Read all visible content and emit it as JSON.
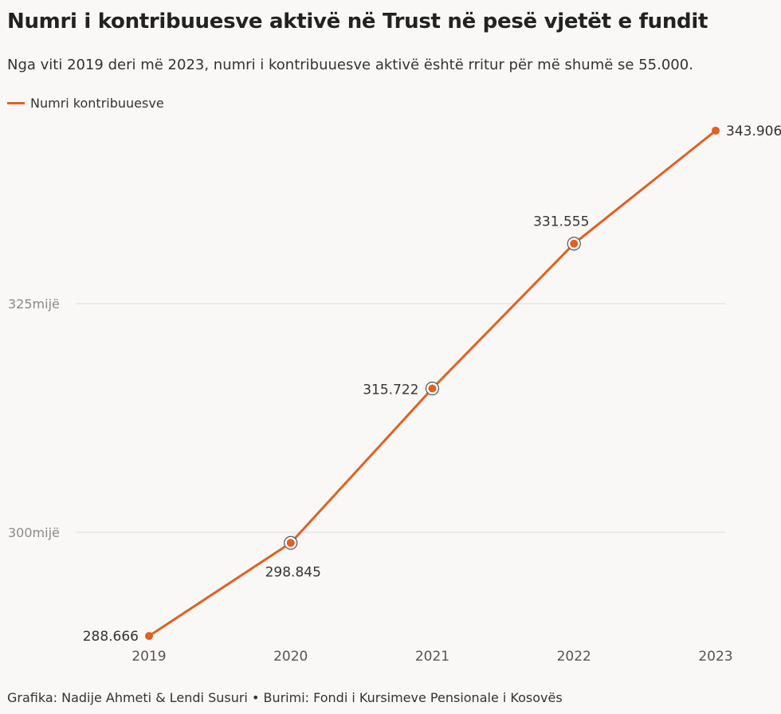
{
  "chart_data": {
    "type": "line",
    "title": "Numri i kontribuuesve aktivë në Trust në pesë vjetët e fundit",
    "subtitle": "Nga viti 2019 deri më 2023, numri i kontribuuesve aktivë është rritur për më shumë se 55.000.",
    "x": [
      "2019",
      "2020",
      "2021",
      "2022",
      "2023"
    ],
    "series": [
      {
        "name": "Numri kontribuuesve",
        "values": [
          288666,
          298845,
          315722,
          331555,
          343906
        ],
        "labels": [
          "288.666",
          "298.845",
          "315.722",
          "331.555",
          "343.906"
        ]
      }
    ],
    "y_ticks": [
      {
        "value": 300000,
        "label": "300mijë"
      },
      {
        "value": 325000,
        "label": "325mijë"
      }
    ],
    "ylim": [
      288000,
      345000
    ],
    "grid": true,
    "legend": "top-left",
    "line_color": "#e3601e",
    "footer": "Grafika: Nadije Ahmeti & Lendi Susuri • Burimi: Fondi i Kursimeve Pensionale i Kosovës"
  }
}
